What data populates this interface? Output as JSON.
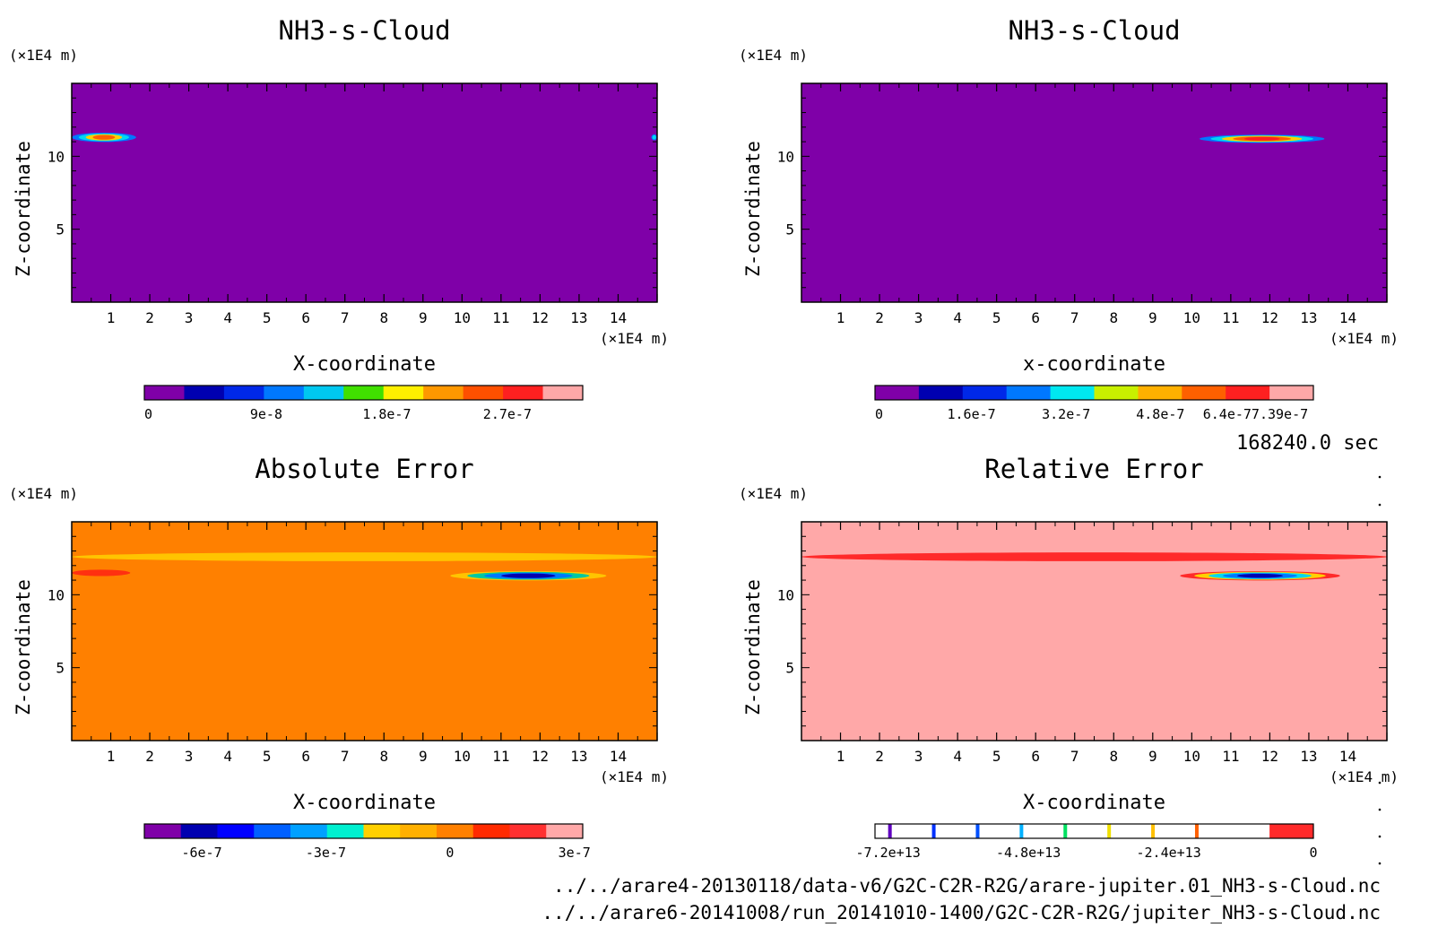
{
  "time_label": "168240.0 sec",
  "files": [
    "../../arare4-20130118/data-v6/G2C-C2R-R2G/arare-jupiter.01_NH3-s-Cloud.nc",
    "../../arare6-20141008/run_20141010-1400/G2C-C2R-R2G/jupiter_NH3-s-Cloud.nc"
  ],
  "colors": {
    "purple": "#7f00a8",
    "orange": "#ff8000",
    "pink": "#ffa8a8",
    "red": "#ff2a2a",
    "yellow": "#ffd000",
    "cyan": "#00d8f0",
    "blue": "#0050ff",
    "dark_blue": "#0000b0"
  },
  "chart_data": [
    {
      "type": "heatmap",
      "title": "NH3-s-Cloud",
      "xlabel": "X-coordinate",
      "ylabel": "Z-coordinate",
      "x_unit": "(×1E4 m)",
      "y_unit": "(×1E4 m)",
      "xlim": [
        0,
        15
      ],
      "ylim": [
        0,
        15
      ],
      "x_ticks": [
        "1",
        "2",
        "3",
        "4",
        "5",
        "6",
        "7",
        "8",
        "9",
        "10",
        "11",
        "12",
        "13",
        "14"
      ],
      "y_ticks": [
        "5",
        "10"
      ],
      "background": "#7f00a8",
      "features": [
        {
          "x": [
            0,
            1.65
          ],
          "z": 11.3,
          "halfthick": 0.32,
          "colors": [
            "#0078ff",
            "#00d8f0",
            "#ffd000",
            "#ff6000"
          ]
        },
        {
          "x": [
            14.85,
            15
          ],
          "z": 11.3,
          "halfthick": 0.2,
          "colors": [
            "#0078ff",
            "#00d8f0"
          ]
        }
      ],
      "colorbar": {
        "colors": [
          "#7f00a8",
          "#0000b0",
          "#0028e8",
          "#0078ff",
          "#00c8f0",
          "#40e000",
          "#fff000",
          "#ff9800",
          "#ff5000",
          "#ff2020",
          "#ffa8a8"
        ],
        "tick_labels": [
          "0",
          "9e-8",
          "1.8e-7",
          "2.7e-7"
        ]
      }
    },
    {
      "type": "heatmap",
      "title": "NH3-s-Cloud",
      "xlabel": "x-coordinate",
      "ylabel": "Z-coordinate",
      "x_unit": "(×1E4 m)",
      "y_unit": "(×1E4 m)",
      "xlim": [
        0,
        15
      ],
      "ylim": [
        0,
        15
      ],
      "x_ticks": [
        "1",
        "2",
        "3",
        "4",
        "5",
        "6",
        "7",
        "8",
        "9",
        "10",
        "11",
        "12",
        "13",
        "14"
      ],
      "y_ticks": [
        "5",
        "10"
      ],
      "background": "#7f00a8",
      "features": [
        {
          "x": [
            10.2,
            13.4
          ],
          "z": 11.2,
          "halfthick": 0.28,
          "colors": [
            "#0078ff",
            "#00d8f0",
            "#ffd000",
            "#ff6000",
            "#ff2020"
          ]
        }
      ],
      "colorbar": {
        "colors": [
          "#7f00a8",
          "#0000b0",
          "#0028e8",
          "#0078ff",
          "#00e8f0",
          "#c8f000",
          "#ffb000",
          "#ff6000",
          "#ff2020",
          "#ffa8a8"
        ],
        "tick_labels": [
          "0",
          "1.6e-7",
          "3.2e-7",
          "4.8e-7",
          "6.4e-77.39e-7"
        ]
      }
    },
    {
      "type": "heatmap",
      "title": "Absolute Error",
      "xlabel": "X-coordinate",
      "ylabel": "Z-coordinate",
      "x_unit": "(×1E4 m)",
      "y_unit": "(×1E4 m)",
      "xlim": [
        0,
        15
      ],
      "ylim": [
        0,
        15
      ],
      "x_ticks": [
        "1",
        "2",
        "3",
        "4",
        "5",
        "6",
        "7",
        "8",
        "9",
        "10",
        "11",
        "12",
        "13",
        "14"
      ],
      "y_ticks": [
        "5",
        "10"
      ],
      "background": "#ff8000",
      "features": [
        {
          "x": [
            0,
            15
          ],
          "z": 12.6,
          "halfthick": 0.3,
          "colors": [
            "#ffc400"
          ]
        },
        {
          "x": [
            0,
            1.5
          ],
          "z": 11.5,
          "halfthick": 0.22,
          "colors": [
            "#ff3010"
          ]
        },
        {
          "x": [
            9.7,
            13.7
          ],
          "z": 11.3,
          "halfthick": 0.32,
          "colors": [
            "#ffc400",
            "#00c8a0",
            "#0078ff",
            "#0000b0"
          ]
        }
      ],
      "colorbar": {
        "colors": [
          "#7f00a8",
          "#0000b0",
          "#0000ff",
          "#0060ff",
          "#00a0ff",
          "#00f0d0",
          "#ffd000",
          "#ffb000",
          "#ff8000",
          "#ff2a00",
          "#ff3030",
          "#ffa8a8"
        ],
        "tick_labels": [
          "-6e-7",
          "-3e-7",
          "0",
          "3e-7"
        ]
      }
    },
    {
      "type": "heatmap",
      "title": "Relative Error",
      "xlabel": "X-coordinate",
      "ylabel": "Z-coordinate",
      "x_unit": "(×1E4 m)",
      "y_unit": "(×1E4 m)",
      "xlim": [
        0,
        15
      ],
      "ylim": [
        0,
        15
      ],
      "x_ticks": [
        "1",
        "2",
        "3",
        "4",
        "5",
        "6",
        "7",
        "8",
        "9",
        "10",
        "11",
        "12",
        "13",
        "14"
      ],
      "y_ticks": [
        "5",
        "10"
      ],
      "background": "#ffa8a8",
      "features": [
        {
          "x": [
            0,
            15
          ],
          "z": 12.6,
          "halfthick": 0.3,
          "colors": [
            "#ff2a2a"
          ]
        },
        {
          "x": [
            9.7,
            13.8
          ],
          "z": 11.3,
          "halfthick": 0.32,
          "colors": [
            "#ff2a2a",
            "#ffd000",
            "#00d8f0",
            "#0078ff",
            "#0000b0"
          ]
        }
      ],
      "colorbar": {
        "colors": [
          "#ffffff",
          "#ffffff",
          "#ffffff",
          "#ffffff",
          "#ffffff",
          "#ffffff",
          "#ffffff",
          "#ffffff",
          "#ffffff",
          "#ff2a2a"
        ],
        "lines": [
          "#6000c0",
          "#0030ff",
          "#0050ff",
          "#00b0ff",
          "#00e060",
          "#f0e000",
          "#ffc000",
          "#ff6000"
        ],
        "tick_labels": [
          "-7.2e+13",
          "-4.8e+13",
          "-2.4e+13",
          "0"
        ]
      }
    }
  ]
}
